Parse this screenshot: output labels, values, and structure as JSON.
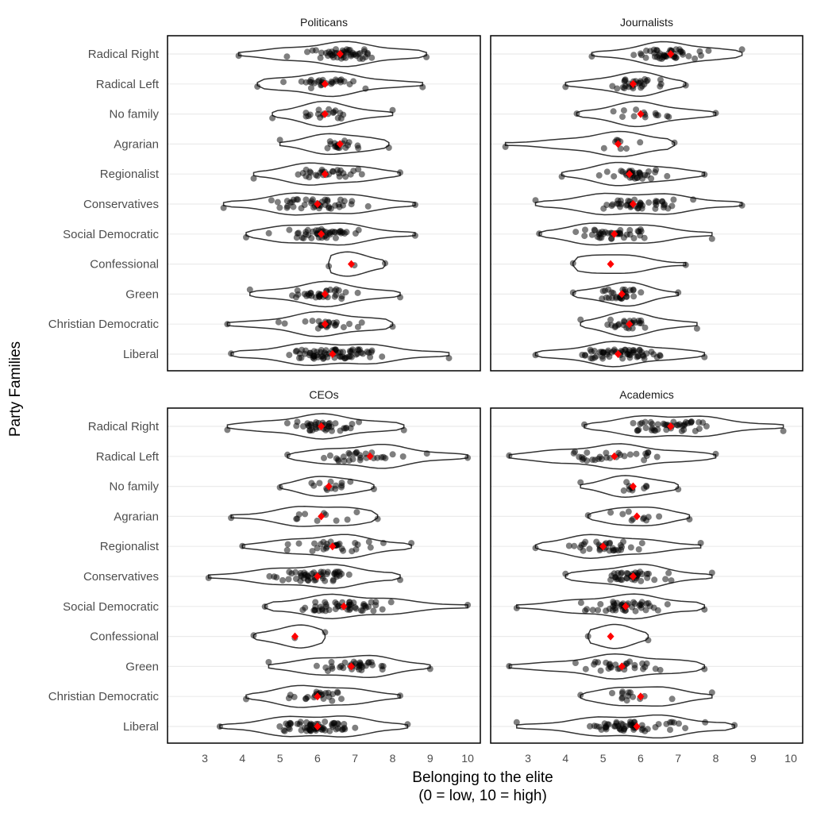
{
  "chart_data": {
    "type": "scatter",
    "subtype": "faceted violin plot with jittered points and mean markers",
    "xlabel": "Belonging to the elite",
    "xlabel2": "(0 = low, 10 = high)",
    "ylabel": "Party Families",
    "xlim": [
      2,
      10.3
    ],
    "x_ticks": [
      "3",
      "4",
      "5",
      "6",
      "7",
      "8",
      "9",
      "10"
    ],
    "categories": [
      "Radical Right",
      "Radical Left",
      "No family",
      "Agrarian",
      "Regionalist",
      "Conservatives",
      "Social Democratic",
      "Confessional",
      "Green",
      "Christian Democratic",
      "Liberal"
    ],
    "mean_color": "#ff0000",
    "point_color": "#000000",
    "grid": "horizontal major lines",
    "panels": [
      {
        "title": "Politicans",
        "means": [
          6.6,
          6.2,
          6.2,
          6.6,
          6.2,
          6.0,
          6.1,
          6.9,
          6.2,
          6.2,
          6.4
        ],
        "ranges": [
          [
            3.9,
            8.9
          ],
          [
            4.4,
            8.8
          ],
          [
            4.8,
            8.0
          ],
          [
            5.0,
            7.9
          ],
          [
            4.3,
            8.2
          ],
          [
            3.5,
            8.6
          ],
          [
            4.1,
            8.6
          ],
          [
            6.3,
            7.8
          ],
          [
            4.2,
            8.2
          ],
          [
            3.6,
            8.0
          ],
          [
            3.7,
            9.5
          ]
        ],
        "n": [
          50,
          30,
          20,
          20,
          30,
          45,
          45,
          3,
          35,
          25,
          70
        ]
      },
      {
        "title": "Journalists",
        "means": [
          6.8,
          5.8,
          6.0,
          5.4,
          5.7,
          5.8,
          5.3,
          5.2,
          5.5,
          5.7,
          5.4
        ],
        "ranges": [
          [
            4.7,
            8.7
          ],
          [
            4.0,
            7.2
          ],
          [
            4.3,
            8.0
          ],
          [
            2.4,
            6.9
          ],
          [
            3.9,
            7.7
          ],
          [
            3.2,
            8.7
          ],
          [
            3.3,
            7.9
          ],
          [
            4.2,
            7.2
          ],
          [
            4.2,
            7.0
          ],
          [
            4.4,
            7.5
          ],
          [
            3.2,
            7.7
          ]
        ],
        "n": [
          45,
          30,
          15,
          10,
          35,
          45,
          40,
          2,
          30,
          25,
          60
        ]
      },
      {
        "title": "CEOs",
        "means": [
          6.1,
          7.4,
          6.3,
          6.1,
          6.4,
          6.0,
          6.7,
          5.4,
          6.9,
          6.0,
          6.0
        ],
        "ranges": [
          [
            3.6,
            8.3
          ],
          [
            5.2,
            10.0
          ],
          [
            5.0,
            7.5
          ],
          [
            3.7,
            7.6
          ],
          [
            4.0,
            8.5
          ],
          [
            3.1,
            8.2
          ],
          [
            4.6,
            10.0
          ],
          [
            4.3,
            6.2
          ],
          [
            4.7,
            9.0
          ],
          [
            4.1,
            8.2
          ],
          [
            3.4,
            8.4
          ]
        ],
        "n": [
          40,
          30,
          15,
          12,
          30,
          50,
          50,
          3,
          35,
          25,
          60
        ]
      },
      {
        "title": "Academics",
        "means": [
          6.8,
          5.3,
          5.8,
          5.9,
          5.0,
          5.8,
          5.6,
          5.2,
          5.5,
          6.0,
          5.9
        ],
        "ranges": [
          [
            4.5,
            9.8
          ],
          [
            2.5,
            8.0
          ],
          [
            4.4,
            7.0
          ],
          [
            4.6,
            7.3
          ],
          [
            3.2,
            7.6
          ],
          [
            4.0,
            7.9
          ],
          [
            2.7,
            7.7
          ],
          [
            4.6,
            6.2
          ],
          [
            2.5,
            7.7
          ],
          [
            4.4,
            7.9
          ],
          [
            2.7,
            8.5
          ]
        ],
        "n": [
          45,
          30,
          12,
          12,
          35,
          40,
          45,
          2,
          30,
          15,
          55
        ]
      }
    ]
  }
}
